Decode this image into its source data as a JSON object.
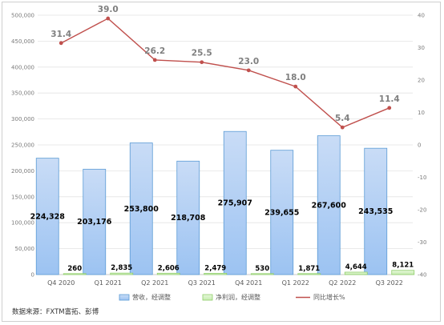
{
  "chart_data": {
    "type": "bar",
    "categories": [
      "Q4 2020",
      "Q1 2021",
      "Q2 2021",
      "Q3 2021",
      "Q4 2021",
      "Q1 2022",
      "Q2 2022",
      "Q3 2022"
    ],
    "series": [
      {
        "name": "营收，经调整",
        "kind": "bar",
        "axis": "left",
        "color": "#9cc3f2",
        "values": [
          224328,
          203176,
          253800,
          218708,
          275907,
          239655,
          267600,
          243535
        ],
        "labels": [
          "224,328",
          "203,176",
          "253,800",
          "218,708",
          "275,907",
          "239,655",
          "267,600",
          "243,535"
        ]
      },
      {
        "name": "净利润，经调整",
        "kind": "bar",
        "axis": "left",
        "color": "#c6ecb0",
        "values": [
          260,
          2835,
          2606,
          2479,
          530,
          1871,
          4644,
          8121
        ],
        "labels": [
          "260",
          "2,835",
          "2,606",
          "2,479",
          "530",
          "1,871",
          "4,644",
          "8,121"
        ]
      },
      {
        "name": "同比增长%",
        "kind": "line",
        "axis": "right",
        "color": "#c0504d",
        "values": [
          31.4,
          39.0,
          26.2,
          25.5,
          23.0,
          18.0,
          5.4,
          11.4
        ],
        "labels": [
          "31.4",
          "39.0",
          "26.2",
          "25.5",
          "23.0",
          "18.0",
          "5.4",
          "11.4"
        ]
      }
    ],
    "ylim": [
      0,
      500000
    ],
    "yticks": [
      "0",
      "50,000",
      "100,000",
      "150,000",
      "200,000",
      "250,000",
      "300,000",
      "350,000",
      "400,000",
      "450,000",
      "500,000"
    ],
    "y2lim": [
      -40,
      40
    ],
    "y2ticks": [
      "-40",
      "-30",
      "-20",
      "-10",
      "0",
      "10",
      "20",
      "30",
      "40"
    ],
    "grid": true,
    "legend_position": "bottom"
  },
  "source_note": "数据来源：FXTM富拓、彭博"
}
